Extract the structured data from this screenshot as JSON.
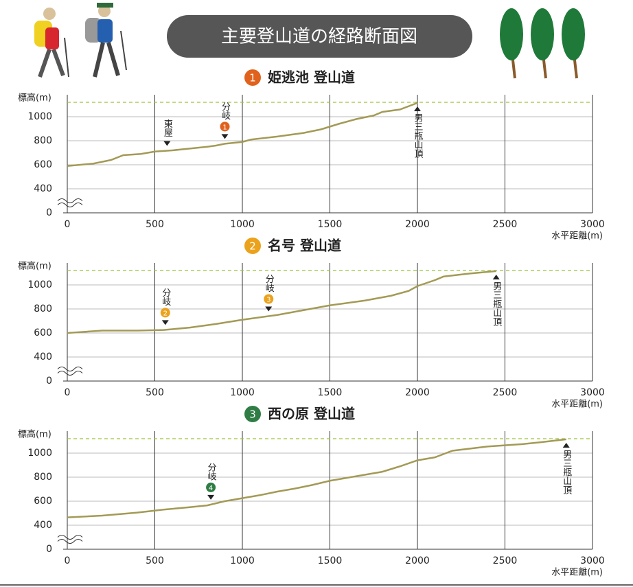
{
  "header": {
    "title": "主要登山道の経路断面図"
  },
  "chart_data": [
    {
      "type": "line",
      "number": 1,
      "badge_color": "#e0621c",
      "title": "姫逃池 登山道",
      "ylabel": "標高(m)",
      "xlabel": "水平距離(m)",
      "x": [
        0,
        150,
        250,
        320,
        420,
        500,
        600,
        700,
        800,
        850,
        900,
        1000,
        1050,
        1200,
        1350,
        1450,
        1550,
        1650,
        1750,
        1800,
        1900,
        2000
      ],
      "values": [
        590,
        610,
        640,
        680,
        690,
        710,
        720,
        735,
        750,
        760,
        775,
        790,
        810,
        835,
        865,
        895,
        940,
        980,
        1010,
        1040,
        1060,
        1115
      ],
      "color": "#a39a55",
      "xlim": [
        0,
        3000
      ],
      "xticks": [
        0,
        500,
        1000,
        1500,
        2000,
        2500,
        3000
      ],
      "ylim": [
        0,
        1200
      ],
      "y_break": [
        0,
        400
      ],
      "yticks": [
        0,
        400,
        600,
        800,
        1000
      ],
      "reference_line": 1120,
      "reference_color": "#9bc43a",
      "annotations": [
        {
          "x": 570,
          "label": "東屋"
        },
        {
          "x": 900,
          "label": "分岐",
          "badge": 1
        }
      ],
      "summit": {
        "x": 2000,
        "label": "男三瓶山頂"
      }
    },
    {
      "type": "line",
      "number": 2,
      "badge_color": "#eba21c",
      "title": "名号 登山道",
      "ylabel": "標高(m)",
      "xlabel": "水平距離(m)",
      "x": [
        0,
        200,
        400,
        550,
        700,
        850,
        1000,
        1200,
        1350,
        1500,
        1700,
        1850,
        1950,
        2000,
        2100,
        2150,
        2300,
        2450
      ],
      "values": [
        600,
        620,
        620,
        625,
        645,
        675,
        710,
        750,
        790,
        830,
        870,
        910,
        950,
        990,
        1040,
        1070,
        1095,
        1115
      ],
      "color": "#a39a55",
      "xlim": [
        0,
        3000
      ],
      "xticks": [
        0,
        500,
        1000,
        1500,
        2000,
        2500,
        3000
      ],
      "ylim": [
        0,
        1200
      ],
      "y_break": [
        0,
        400
      ],
      "yticks": [
        0,
        400,
        600,
        800,
        1000
      ],
      "reference_line": 1120,
      "reference_color": "#9bc43a",
      "annotations": [
        {
          "x": 560,
          "label": "分岐",
          "badge": 2
        },
        {
          "x": 1150,
          "label": "分岐",
          "badge": 3
        }
      ],
      "summit": {
        "x": 2450,
        "label": "男三瓶山頂"
      }
    },
    {
      "type": "line",
      "number": 3,
      "badge_color": "#2f7d44",
      "title": "西の原 登山道",
      "ylabel": "標高(m)",
      "xlabel": "水平距離(m)",
      "x": [
        0,
        200,
        400,
        550,
        700,
        800,
        900,
        1000,
        1100,
        1200,
        1300,
        1400,
        1500,
        1600,
        1700,
        1800,
        1900,
        2000,
        2100,
        2200,
        2400,
        2600,
        2700,
        2850
      ],
      "values": [
        465,
        480,
        505,
        530,
        550,
        565,
        600,
        625,
        650,
        680,
        705,
        735,
        770,
        795,
        820,
        845,
        890,
        940,
        965,
        1020,
        1055,
        1075,
        1090,
        1115
      ],
      "color": "#a39a55",
      "xlim": [
        0,
        3000
      ],
      "xticks": [
        0,
        500,
        1000,
        1500,
        2000,
        2500,
        3000
      ],
      "ylim": [
        0,
        1200
      ],
      "y_break": [
        0,
        400
      ],
      "yticks": [
        0,
        400,
        600,
        800,
        1000
      ],
      "reference_line": 1120,
      "reference_color": "#9bc43a",
      "annotations": [
        {
          "x": 820,
          "label": "分岐",
          "badge": 4
        }
      ],
      "summit": {
        "x": 2850,
        "label": "男三瓶山頂"
      }
    }
  ]
}
